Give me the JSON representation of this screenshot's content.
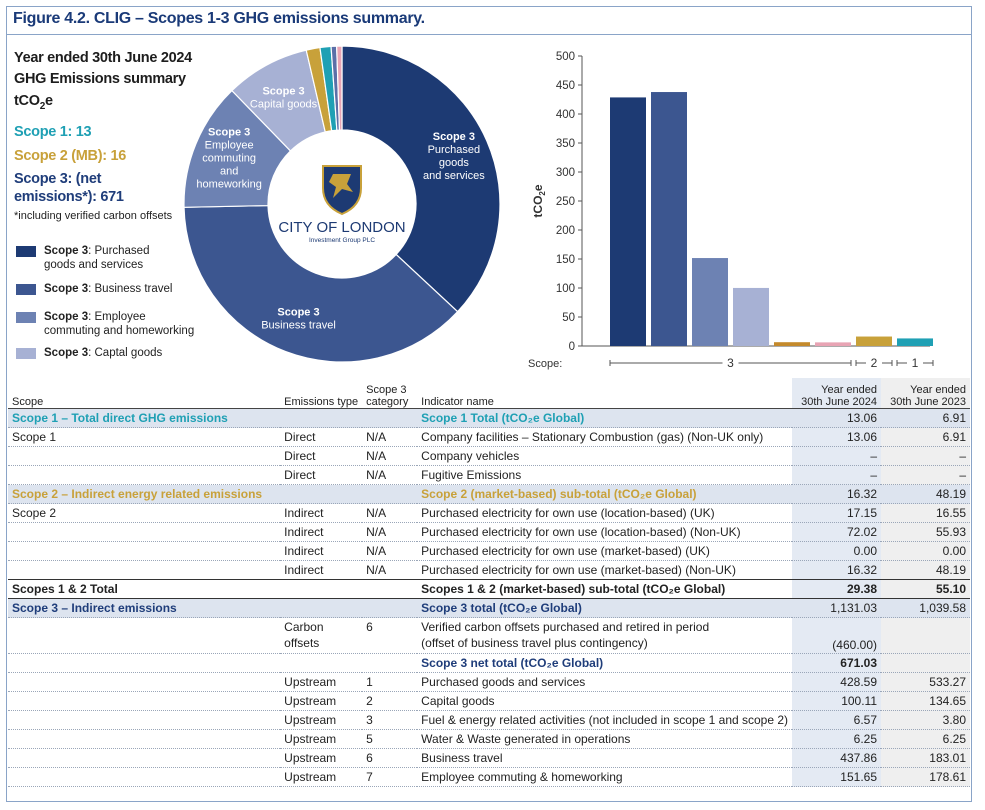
{
  "figure_title": "Figure 4.2. CLIG – Scopes 1-3 GHG emissions summary.",
  "summary": {
    "line1": "Year ended 30th June 2024",
    "line2": "GHG Emissions summary",
    "unit_main": "tCO",
    "unit_sub": "2",
    "unit_end": "e",
    "scope1": "Scope 1: 13",
    "scope2": "Scope 2 (MB): 16",
    "scope3_a": "Scope 3: (net",
    "scope3_b": "emissions*): 671",
    "note": "*including verified carbon offsets"
  },
  "legend": [
    {
      "bold": "Scope 3",
      "text": ": Purchased",
      "text2": "goods and services",
      "color": "#1d3a73"
    },
    {
      "bold": "Scope 3",
      "text": ": Business travel",
      "text2": "",
      "color": "#3c5690"
    },
    {
      "bold": "Scope 3",
      "text": ": Employee",
      "text2": "commuting and homeworking",
      "color": "#6d82b3"
    },
    {
      "bold": "Scope 3",
      "text": ": Captal goods",
      "text2": "",
      "color": "#a7b1d4"
    }
  ],
  "logo": {
    "line1": "CITY OF LONDON",
    "line2": "Investment Group PLC"
  },
  "chart_data": [
    {
      "type": "pie",
      "variant": "donut",
      "slices": [
        {
          "label_lines": [
            "Scope 3",
            "Purchased",
            "goods",
            "and services"
          ],
          "value": 428.59,
          "color": "#1d3a73"
        },
        {
          "label_lines": [
            "Scope 3",
            "Business travel"
          ],
          "value": 437.86,
          "color": "#3c5690"
        },
        {
          "label_lines": [
            "Scope 3",
            "Employee",
            "commuting",
            "and",
            "homeworking"
          ],
          "value": 151.65,
          "color": "#6d82b3"
        },
        {
          "label_lines": [
            "Scope 3",
            "Capital goods"
          ],
          "value": 100.11,
          "color": "#a7b1d4"
        },
        {
          "label_lines": [],
          "value": 16.32,
          "color": "#c8a13a"
        },
        {
          "label_lines": [],
          "value": 13.06,
          "color": "#1fa0b4"
        },
        {
          "label_lines": [],
          "value": 6.57,
          "color": "#5b6fa8"
        },
        {
          "label_lines": [],
          "value": 6.25,
          "color": "#e8a4b4"
        }
      ]
    },
    {
      "type": "bar",
      "ylabel_main": "tCO",
      "ylabel_sub": "2",
      "ylabel_end": "e",
      "ylim": [
        0,
        500
      ],
      "yticks": [
        0,
        50,
        100,
        150,
        200,
        250,
        300,
        350,
        400,
        450,
        500
      ],
      "bars": [
        {
          "value": 428.59,
          "color": "#1d3a73",
          "group": "3"
        },
        {
          "value": 437.86,
          "color": "#3c5690",
          "group": "3"
        },
        {
          "value": 151.65,
          "color": "#6d82b3",
          "group": "3"
        },
        {
          "value": 100.11,
          "color": "#a7b1d4",
          "group": "3"
        },
        {
          "value": 6.57,
          "color": "#c48a2c",
          "group": "3"
        },
        {
          "value": 6.25,
          "color": "#e8a4b4",
          "group": "3"
        },
        {
          "value": 16.32,
          "color": "#c8a13a",
          "group": "2"
        },
        {
          "value": 13.06,
          "color": "#1fa0b4",
          "group": "1"
        }
      ],
      "scope_axis_label": "Scope:",
      "groups": [
        "3",
        "2",
        "1"
      ]
    }
  ],
  "table": {
    "headers": [
      "Scope",
      "Emissions type",
      "Scope 3 category",
      "Indicator name",
      "Year ended 30th June 2024",
      "Year ended 30th June 2023"
    ],
    "header_scope3_a": "Scope 3",
    "header_scope3_b": "category",
    "header_2024_a": "Year ended",
    "header_2024_b": "30th June 2024",
    "header_2023_a": "Year ended",
    "header_2023_b": "30th June 2023",
    "rows": [
      {
        "kind": "sec1",
        "scope": "Scope 1 – Total direct GHG emissions",
        "type": "",
        "cat": "",
        "ind": "Scope 1 Total (tCO₂e Global)",
        "v24": "13.06",
        "v23": "6.91"
      },
      {
        "kind": "",
        "scope": "Scope 1",
        "type": "Direct",
        "cat": "N/A",
        "ind": "Company facilities – Stationary Combustion (gas) (Non-UK only)",
        "v24": "13.06",
        "v23": "6.91"
      },
      {
        "kind": "",
        "scope": "",
        "type": "Direct",
        "cat": "N/A",
        "ind": "Company vehicles",
        "v24": "–",
        "v23": "–"
      },
      {
        "kind": "",
        "scope": "",
        "type": "Direct",
        "cat": "N/A",
        "ind": "Fugitive Emissions",
        "v24": "–",
        "v23": "–"
      },
      {
        "kind": "sec2",
        "scope": "Scope 2 – Indirect energy related emissions",
        "type": "",
        "cat": "",
        "ind": "Scope 2 (market-based) sub-total (tCO₂e Global)",
        "v24": "16.32",
        "v23": "48.19"
      },
      {
        "kind": "",
        "scope": "Scope 2",
        "type": "Indirect",
        "cat": "N/A",
        "ind": "Purchased electricity for own use (location-based) (UK)",
        "v24": "17.15",
        "v23": "16.55"
      },
      {
        "kind": "",
        "scope": "",
        "type": "Indirect",
        "cat": "N/A",
        "ind": "Purchased electricity for own use (location-based) (Non-UK)",
        "v24": "72.02",
        "v23": "55.93"
      },
      {
        "kind": "",
        "scope": "",
        "type": "Indirect",
        "cat": "N/A",
        "ind": "Purchased electricity for own use (market-based) (UK)",
        "v24": "0.00",
        "v23": "0.00"
      },
      {
        "kind": "",
        "scope": "",
        "type": "Indirect",
        "cat": "N/A",
        "ind": "Purchased electricity for own use (market-based) (Non-UK)",
        "v24": "16.32",
        "v23": "48.19"
      },
      {
        "kind": "tot",
        "scope": "Scopes 1 & 2 Total",
        "type": "",
        "cat": "",
        "ind": "Scopes 1 & 2 (market-based) sub-total (tCO₂e Global)",
        "v24": "29.38",
        "v23": "55.10"
      },
      {
        "kind": "sec3",
        "scope": "Scope 3 – Indirect emissions",
        "type": "",
        "cat": "",
        "ind": "Scope 3 total (tCO₂e Global)",
        "v24": "1,131.03",
        "v23": "1,039.58"
      },
      {
        "kind": "two",
        "scope": "",
        "type": "Carbon",
        "type2": "offsets",
        "cat": "6",
        "ind": "Verified carbon offsets purchased and retired in period",
        "ind2": "(offset of business travel plus contingency)",
        "v24": "(460.00)",
        "v23": ""
      },
      {
        "kind": "netrow",
        "scope": "",
        "type": "",
        "cat": "",
        "ind": "Scope 3 net total (tCO₂e Global)",
        "v24": "671.03",
        "v23": ""
      },
      {
        "kind": "",
        "scope": "",
        "type": "Upstream",
        "cat": "1",
        "ind": "Purchased goods and services",
        "v24": "428.59",
        "v23": "533.27"
      },
      {
        "kind": "",
        "scope": "",
        "type": "Upstream",
        "cat": "2",
        "ind": "Capital goods",
        "v24": "100.11",
        "v23": "134.65"
      },
      {
        "kind": "",
        "scope": "",
        "type": "Upstream",
        "cat": "3",
        "ind": "Fuel & energy related activities (not included in scope 1 and scope 2)",
        "v24": "6.57",
        "v23": "3.80"
      },
      {
        "kind": "",
        "scope": "",
        "type": "Upstream",
        "cat": "5",
        "ind": "Water & Waste generated in operations",
        "v24": "6.25",
        "v23": "6.25"
      },
      {
        "kind": "",
        "scope": "",
        "type": "Upstream",
        "cat": "6",
        "ind": "Business travel",
        "v24": "437.86",
        "v23": "183.01"
      },
      {
        "kind": "",
        "scope": "",
        "type": "Upstream",
        "cat": "7",
        "ind": "Employee commuting & homeworking",
        "v24": "151.65",
        "v23": "178.61"
      }
    ]
  }
}
